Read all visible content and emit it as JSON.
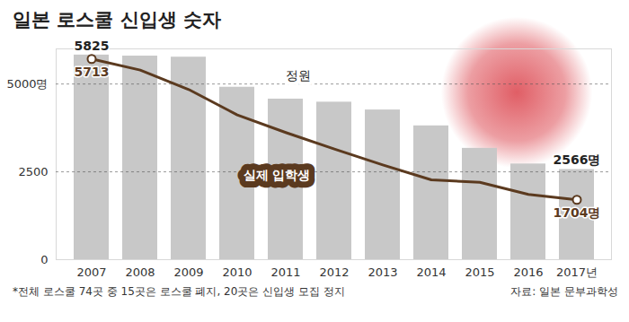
{
  "chart_data": {
    "type": "bar",
    "title": "일본 로스쿨 신입생 숫자",
    "categories": [
      "2007",
      "2008",
      "2009",
      "2010",
      "2011",
      "2012",
      "2013",
      "2014",
      "2015",
      "2016",
      "2017년"
    ],
    "series": [
      {
        "name": "정원",
        "type": "bar",
        "color": "#c8c8c8",
        "values": [
          5825,
          5795,
          5765,
          4909,
          4571,
          4484,
          4261,
          3809,
          3169,
          2724,
          2566
        ],
        "value_labels": [
          "5825",
          null,
          null,
          null,
          null,
          null,
          null,
          null,
          null,
          null,
          "2566명"
        ]
      },
      {
        "name": "실제 입학생",
        "type": "line",
        "color": "#5b3a1f",
        "marker": "circle",
        "values": [
          5713,
          5397,
          4844,
          4122,
          3620,
          3150,
          2698,
          2272,
          2201,
          1857,
          1704
        ],
        "value_labels": [
          "5713",
          null,
          null,
          null,
          null,
          null,
          null,
          null,
          null,
          null,
          "1704명"
        ]
      }
    ],
    "ylim": [
      0,
      6000
    ],
    "yticks": [
      0,
      2500,
      {
        "value": 5000,
        "label": "5000명"
      }
    ],
    "grid": true,
    "data_labels": true,
    "note": "*전체 로스쿨 74곳 중 15곳은 로스쿨 폐지, 20곳은 신입생 모집 정지",
    "source": "자료: 일본 문부과학성"
  }
}
